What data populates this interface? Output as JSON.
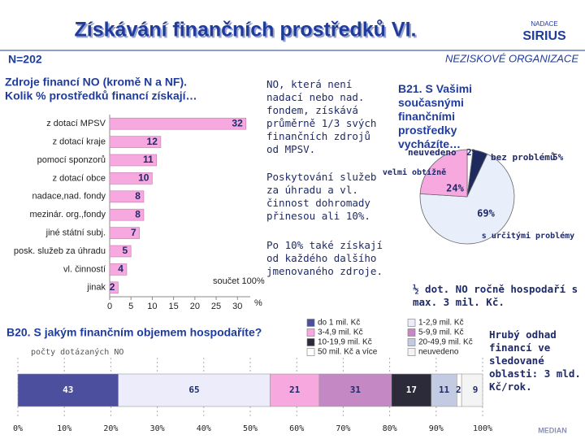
{
  "header": {
    "title": "Získávání finančních prostředků VI.",
    "sample": "N=202",
    "segment": "NEZISKOVÉ ORGANIZACE",
    "logo": [
      "NADACE",
      "SIRIUS"
    ],
    "footer_logo": "MEDIAN"
  },
  "notes": [
    "NO, která není nadací nebo nad. fondem, získává průměrně 1/3 svých finančních zdrojů od MPSV.",
    "Poskytování služeb za úhradu a vl. činnost dohromady přinesou ali 10%.",
    "Po 10% také získají od každého dalšího jmenovaného zdroje.",
    "½ dot. NO ročně hospodaří s max. 3 mil. Kč.",
    "Hrubý odhad financí ve sledované oblasti: 3 mld. Kč/rok."
  ],
  "chart_data": [
    {
      "type": "hbar",
      "title": "Zdroje financí NO (kromě N a NF).",
      "subtitle": "Kolik % prostředků financí získají…",
      "categories": [
        "z dotací MPSV",
        "z dotací kraje",
        "pomocí sponzorů",
        "z dotací obce",
        "nadace,nad. fondy",
        "mezinár. org.,fondy",
        "jiné státní subj.",
        "posk. služeb za úhradu",
        "vl. činností",
        "jinak"
      ],
      "values": [
        32,
        12,
        11,
        10,
        8,
        8,
        7,
        5,
        4,
        2
      ],
      "color": "#f7a8de",
      "xlim": [
        0,
        33
      ],
      "xticks": [
        0,
        5,
        10,
        15,
        20,
        25,
        30
      ],
      "x_label": "%",
      "annotation": "součet 100%"
    },
    {
      "type": "pie",
      "title": "B21. S Vašimi současnými finančními prostředky vycházíte…",
      "categories": [
        "neuvedeno",
        "bez problémů",
        "s určitými problémy",
        "velmi obtížně"
      ],
      "values": [
        2,
        5,
        69,
        24
      ],
      "value_labels": [
        "2%",
        "5%",
        "69%",
        "24%"
      ],
      "colors": [
        "#ffffff",
        "#1e2a5e",
        "#e8eefa",
        "#f7a8de"
      ]
    },
    {
      "type": "stacked",
      "title": "B20. S jakým finančním objemem hospodaříte?",
      "subtitle": "počty dotázaných NO",
      "series": [
        {
          "name": "do 1 mil. Kč",
          "color": "#4b4f9e",
          "values": [
            43
          ]
        },
        {
          "name": "1-2,9 mil. Kč",
          "color": "#ececfa",
          "values": [
            65
          ]
        },
        {
          "name": "3-4,9 mil. Kč",
          "color": "#f7a8de",
          "values": [
            21
          ]
        },
        {
          "name": "5-9,9 mil. Kč",
          "color": "#c489c4",
          "values": [
            31
          ]
        },
        {
          "name": "10-19,9 mil. Kč",
          "color": "#2b2b3a",
          "values": [
            17
          ]
        },
        {
          "name": "20-49,9 mil. Kč",
          "color": "#c3cbe3",
          "values": [
            11
          ]
        },
        {
          "name": "50 mil. Kč a více",
          "color": "#ffffff",
          "values": [
            2
          ]
        },
        {
          "name": "neuvedeno",
          "color": "#f4f4f4",
          "values": [
            9
          ]
        }
      ],
      "xlim": [
        0,
        100
      ],
      "grid": true,
      "xticks": [
        {
          "value": 0,
          "label": "0%"
        },
        {
          "value": 10,
          "label": "10%"
        },
        {
          "value": 20,
          "label": "20%"
        },
        {
          "value": 30,
          "label": "30%"
        },
        {
          "value": 40,
          "label": "40%"
        },
        {
          "value": 50,
          "label": "50%"
        },
        {
          "value": 60,
          "label": "60%"
        },
        {
          "value": 70,
          "label": "70%"
        },
        {
          "value": 80,
          "label": "80%"
        },
        {
          "value": 90,
          "label": "90%"
        },
        {
          "value": 100,
          "label": "100%"
        }
      ]
    }
  ]
}
